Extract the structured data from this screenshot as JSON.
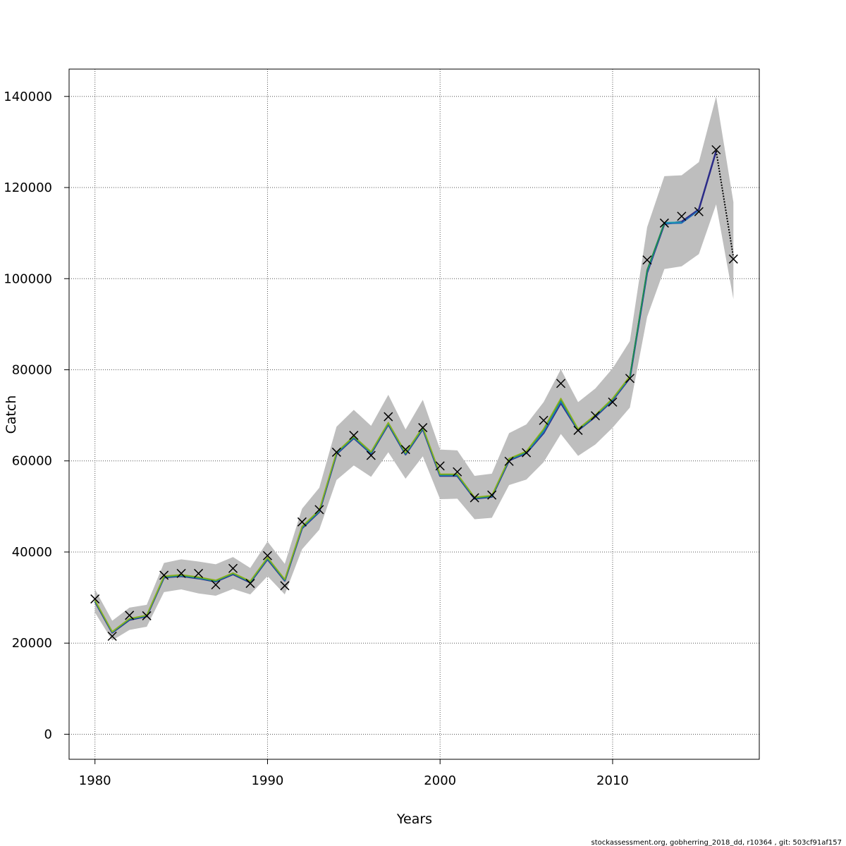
{
  "chart_data": {
    "type": "line",
    "xlabel": "Years",
    "ylabel": "Catch",
    "xlim": [
      1978.5,
      2018.5
    ],
    "ylim": [
      -5500,
      146000
    ],
    "x_ticks": [
      1980,
      1990,
      2000,
      2010
    ],
    "x_tick_labels": [
      "1980",
      "1990",
      "2000",
      "2010"
    ],
    "y_ticks": [
      0,
      20000,
      40000,
      60000,
      80000,
      100000,
      120000,
      140000
    ],
    "y_tick_labels": [
      "0",
      "20000",
      "40000",
      "60000",
      "80000",
      "100000",
      "120000",
      "140000"
    ],
    "grid": true,
    "footer": "stockassessment.org, gobherring_2018_dd, r10364 , git: 503cf91af157",
    "colors": {
      "band": "#bebebe",
      "observed": "#000000",
      "series": [
        "#2b2b88",
        "#1f6bb5",
        "#1a9ab0",
        "#1f8a4c",
        "#8ab020"
      ]
    },
    "years": [
      1980,
      1981,
      1982,
      1983,
      1984,
      1985,
      1986,
      1987,
      1988,
      1989,
      1990,
      1991,
      1992,
      1993,
      1994,
      1995,
      1996,
      1997,
      1998,
      1999,
      2000,
      2001,
      2002,
      2003,
      2004,
      2005,
      2006,
      2007,
      2008,
      2009,
      2010,
      2011,
      2012,
      2013,
      2014,
      2015,
      2016,
      2017
    ],
    "observed_catch": [
      29700,
      21500,
      26100,
      26000,
      34900,
      35300,
      35300,
      32800,
      36400,
      33100,
      39200,
      32600,
      46600,
      49300,
      61900,
      65600,
      61200,
      69700,
      62500,
      67300,
      58900,
      57600,
      51900,
      52500,
      59900,
      61800,
      68900,
      77000,
      66700,
      69900,
      72900,
      78100,
      104100,
      112200,
      113700,
      114700,
      128300,
      104300
    ],
    "estimate_upper": [
      31800,
      24900,
      27800,
      28400,
      37600,
      38400,
      37900,
      37300,
      38900,
      36500,
      42300,
      37400,
      49500,
      54100,
      67500,
      71200,
      67700,
      74500,
      66900,
      73400,
      62500,
      62300,
      56700,
      57200,
      66100,
      68000,
      72900,
      80100,
      72900,
      75900,
      80300,
      86300,
      111300,
      122500,
      122700,
      125600,
      140000,
      116800
    ],
    "estimate_lower": [
      26700,
      20600,
      22900,
      23600,
      31200,
      31800,
      30900,
      30400,
      31900,
      30700,
      34700,
      30700,
      40600,
      44900,
      55800,
      59000,
      56500,
      61900,
      56100,
      61000,
      51600,
      51700,
      47200,
      47500,
      54700,
      55900,
      59700,
      65900,
      61100,
      63600,
      67300,
      71700,
      91600,
      102100,
      102700,
      105400,
      116300,
      95500
    ],
    "series": [
      {
        "values": [
          29100,
          22300,
          25100,
          25900,
          34400,
          34700,
          34200,
          33500,
          35100,
          33300,
          38400,
          33700,
          45200,
          48800,
          61500,
          65000,
          61600,
          68000,
          61400,
          67000,
          56700,
          56700,
          51700,
          52100,
          60100,
          61700,
          66100,
          72700,
          66700,
          69700,
          73300,
          78200,
          101300,
          112000,
          112500,
          115200,
          128000,
          null
        ]
      },
      {
        "values": [
          29200,
          22400,
          25200,
          26000,
          34500,
          34800,
          34300,
          33600,
          35200,
          33400,
          38500,
          33800,
          45300,
          48900,
          61600,
          65100,
          61700,
          68100,
          61500,
          67100,
          56800,
          56800,
          51800,
          52200,
          60200,
          61800,
          66300,
          73000,
          66800,
          69800,
          73400,
          78300,
          101500,
          112100,
          112200,
          115000,
          null,
          null
        ]
      },
      {
        "values": [
          29300,
          22400,
          25300,
          26000,
          34500,
          34800,
          34300,
          33600,
          35300,
          33400,
          38600,
          33800,
          45400,
          49000,
          61700,
          65200,
          61800,
          68200,
          61600,
          67200,
          56900,
          56900,
          51800,
          52200,
          60300,
          61900,
          66700,
          73300,
          66800,
          69900,
          73500,
          78400,
          101700,
          112300,
          112400,
          null,
          null,
          null
        ]
      },
      {
        "values": [
          29300,
          22500,
          25300,
          26100,
          34600,
          34900,
          34400,
          33700,
          35300,
          33500,
          38700,
          33900,
          45500,
          49100,
          61800,
          65300,
          61900,
          68300,
          61700,
          67300,
          57000,
          57000,
          51900,
          52300,
          60400,
          62000,
          66900,
          73500,
          66900,
          70000,
          73600,
          78500,
          101900,
          112200,
          null,
          null,
          null,
          null
        ]
      },
      {
        "values": [
          29400,
          22500,
          25400,
          26100,
          34700,
          35000,
          34500,
          33800,
          35400,
          33600,
          38800,
          34000,
          45600,
          49200,
          61900,
          65400,
          62000,
          68400,
          61800,
          67400,
          57100,
          57100,
          52000,
          52400,
          60500,
          62100,
          67000,
          73700,
          67000,
          70100,
          73700,
          78600,
          null,
          null,
          null,
          null,
          null,
          null
        ]
      }
    ],
    "dotted_segment": {
      "x": [
        2016,
        2017
      ],
      "values": [
        128000,
        104700
      ]
    }
  }
}
